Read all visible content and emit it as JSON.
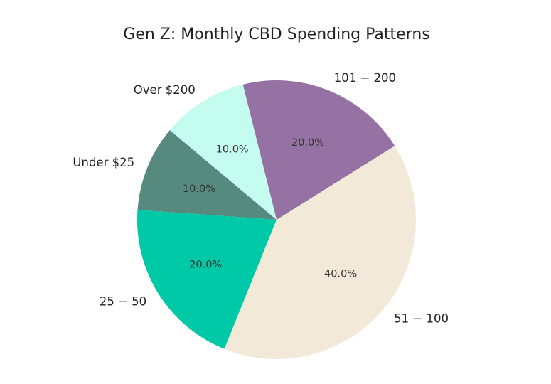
{
  "chart_data": {
    "type": "pie",
    "title": "Gen Z: Monthly CBD Spending Patterns",
    "categories": [
      "Under $25",
      "25 − 50",
      "51 − 100",
      "101 − 200",
      "Over $200"
    ],
    "values": [
      10,
      20,
      40,
      20,
      10
    ],
    "percent_labels": [
      "10.0%",
      "20.0%",
      "40.0%",
      "20.0%",
      "10.0%"
    ],
    "colors": [
      "#568a7e",
      "#00c9a7",
      "#f2e9d9",
      "#9671a4",
      "#c4fcef"
    ],
    "start_angle_deg": 140,
    "direction": "counterclockwise"
  }
}
